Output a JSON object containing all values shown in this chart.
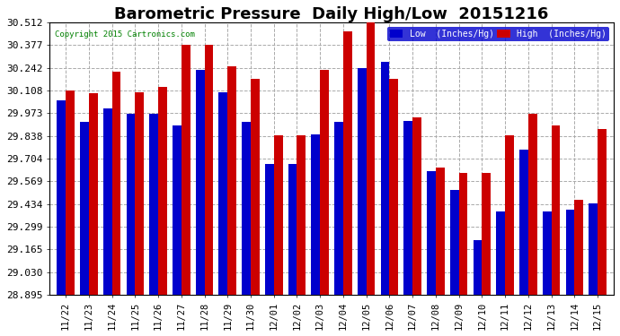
{
  "title": "Barometric Pressure  Daily High/Low  20151216",
  "copyright": "Copyright 2015 Cartronics.com",
  "legend_low": "Low  (Inches/Hg)",
  "legend_high": "High  (Inches/Hg)",
  "low_color": "#0000cc",
  "high_color": "#cc0000",
  "categories": [
    "11/22",
    "11/23",
    "11/24",
    "11/25",
    "11/26",
    "11/27",
    "11/28",
    "11/29",
    "11/30",
    "12/01",
    "12/02",
    "12/03",
    "12/04",
    "12/05",
    "12/06",
    "12/07",
    "12/08",
    "12/09",
    "12/10",
    "12/11",
    "12/12",
    "12/13",
    "12/14",
    "12/15"
  ],
  "low_values": [
    30.05,
    29.92,
    30.0,
    29.97,
    29.97,
    29.9,
    30.23,
    30.1,
    29.92,
    29.67,
    29.67,
    29.85,
    29.92,
    30.24,
    30.28,
    29.93,
    29.63,
    29.52,
    29.22,
    29.39,
    29.76,
    29.39,
    29.4,
    29.44
  ],
  "high_values": [
    30.11,
    30.09,
    30.22,
    30.1,
    30.13,
    30.38,
    30.38,
    30.25,
    30.18,
    29.84,
    29.84,
    30.23,
    30.46,
    30.51,
    30.18,
    29.95,
    29.65,
    29.62,
    29.62,
    29.84,
    29.97,
    29.9,
    29.46,
    29.88
  ],
  "ylim_min": 28.895,
  "ylim_max": 30.512,
  "yticks": [
    28.895,
    29.03,
    29.165,
    29.299,
    29.434,
    29.569,
    29.704,
    29.838,
    29.973,
    30.108,
    30.242,
    30.377,
    30.512
  ],
  "ylabel_fontsize": 8,
  "title_fontsize": 13,
  "bg_color": "#ffffff",
  "grid_color": "#aaaaaa",
  "bar_width": 0.38
}
